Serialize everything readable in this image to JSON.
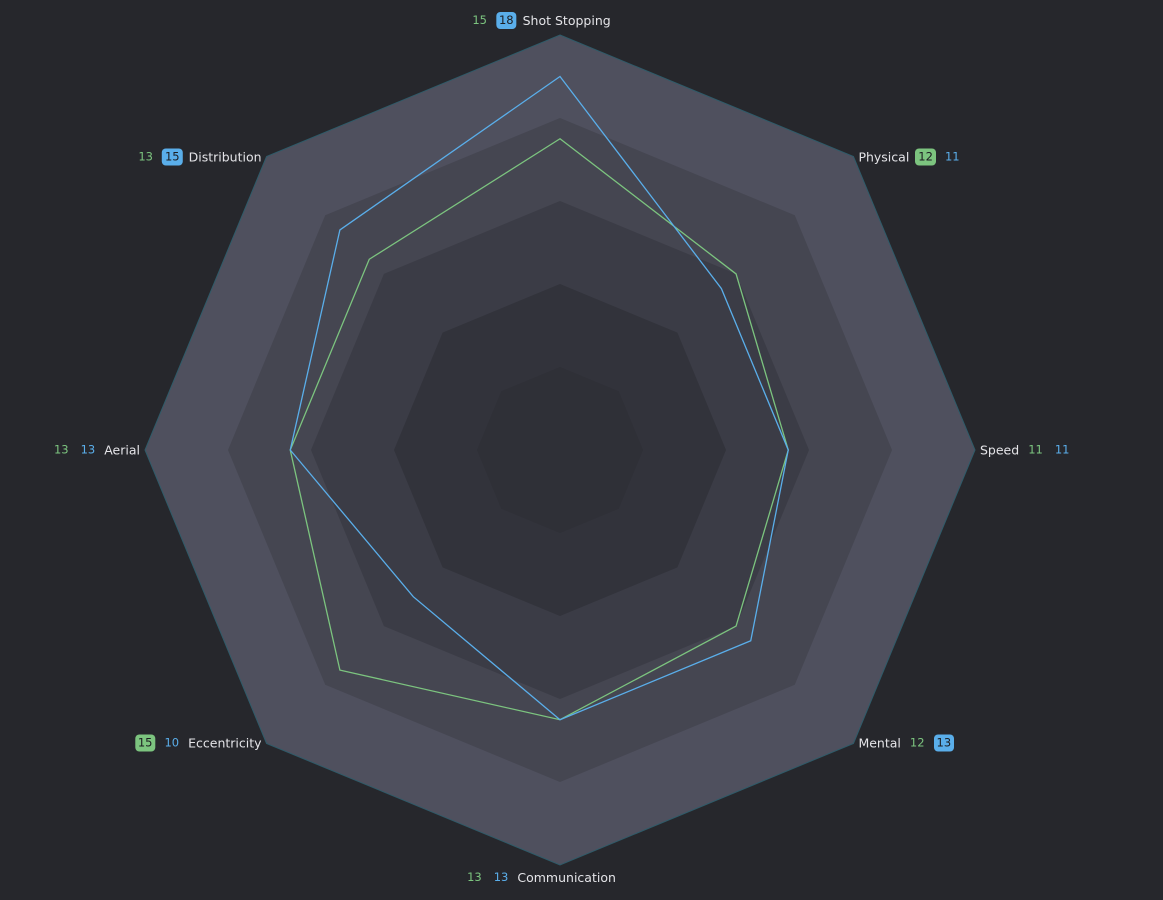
{
  "chart_data": {
    "type": "radar",
    "categories": [
      "Shot Stopping",
      "Physical",
      "Speed",
      "Mental",
      "Communication",
      "Eccentricity",
      "Aerial",
      "Distribution"
    ],
    "series": [
      {
        "color": "#7cc47f",
        "values": [
          15,
          12,
          11,
          12,
          13,
          15,
          13,
          13
        ]
      },
      {
        "color": "#5aaeea",
        "values": [
          18,
          11,
          11,
          13,
          13,
          10,
          13,
          15
        ]
      }
    ],
    "rlim": [
      0,
      20
    ],
    "rticks": [
      4,
      8,
      12,
      16,
      20
    ],
    "grid": true
  }
}
